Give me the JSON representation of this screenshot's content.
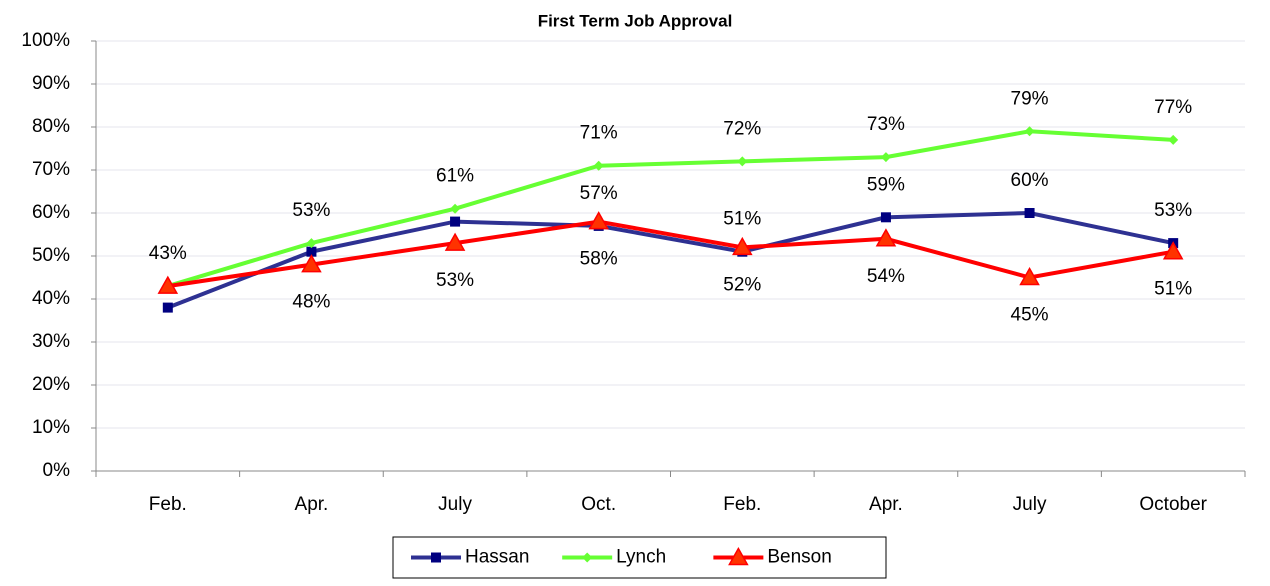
{
  "chart_data": {
    "type": "line",
    "title": "First Term Job Approval",
    "categories": [
      "Feb.",
      "Apr.",
      "July",
      "Oct.",
      "Feb.",
      "Apr.",
      "July",
      "October"
    ],
    "ylim": [
      0,
      100
    ],
    "yticks": [
      {
        "value": 0,
        "label": "0%"
      },
      {
        "value": 10,
        "label": "10%"
      },
      {
        "value": 20,
        "label": "20%"
      },
      {
        "value": 30,
        "label": "30%"
      },
      {
        "value": 40,
        "label": "40%"
      },
      {
        "value": 50,
        "label": "50%"
      },
      {
        "value": 60,
        "label": "60%"
      },
      {
        "value": 70,
        "label": "70%"
      },
      {
        "value": 80,
        "label": "80%"
      },
      {
        "value": 90,
        "label": "90%"
      },
      {
        "value": 100,
        "label": "100%"
      }
    ],
    "grid": true,
    "legend": "bottom",
    "series": [
      {
        "name": "Hassan",
        "color": "#2e3192",
        "marker": "square",
        "label_side": "above",
        "values": [
          38,
          51,
          58,
          57,
          51,
          59,
          60,
          53
        ],
        "value_labels": [
          null,
          null,
          null,
          "57%",
          "51%",
          "59%",
          "60%",
          "53%"
        ]
      },
      {
        "name": "Lynch",
        "color": "#66ff33",
        "marker": "diamond",
        "label_side": "above",
        "values": [
          43,
          53,
          61,
          71,
          72,
          73,
          79,
          77
        ],
        "value_labels": [
          "43%",
          "53%",
          "61%",
          "71%",
          "72%",
          "73%",
          "79%",
          "77%"
        ]
      },
      {
        "name": "Benson",
        "color": "#ff0000",
        "marker": "triangle",
        "label_side": "below",
        "values": [
          43,
          48,
          53,
          58,
          52,
          54,
          45,
          51
        ],
        "value_labels": [
          null,
          "48%",
          "53%",
          "58%",
          "52%",
          "54%",
          "45%",
          "51%"
        ]
      }
    ]
  }
}
